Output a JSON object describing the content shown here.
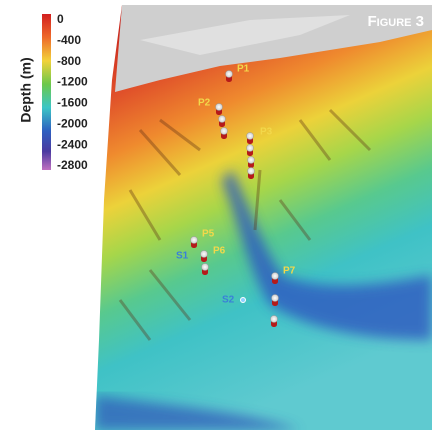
{
  "figure_label": "Figure 3",
  "legend": {
    "title": "Depth (m)",
    "ticks": [
      0,
      -400,
      -800,
      -1200,
      -1600,
      -2000,
      -2400,
      -2800
    ]
  },
  "markers": [
    {
      "label": "P1"
    },
    {
      "label": "P2"
    },
    {
      "label": "P3"
    },
    {
      "label": "P5"
    },
    {
      "label": "P6"
    },
    {
      "label": "S1"
    },
    {
      "label": "P7"
    },
    {
      "label": "S2"
    }
  ]
}
